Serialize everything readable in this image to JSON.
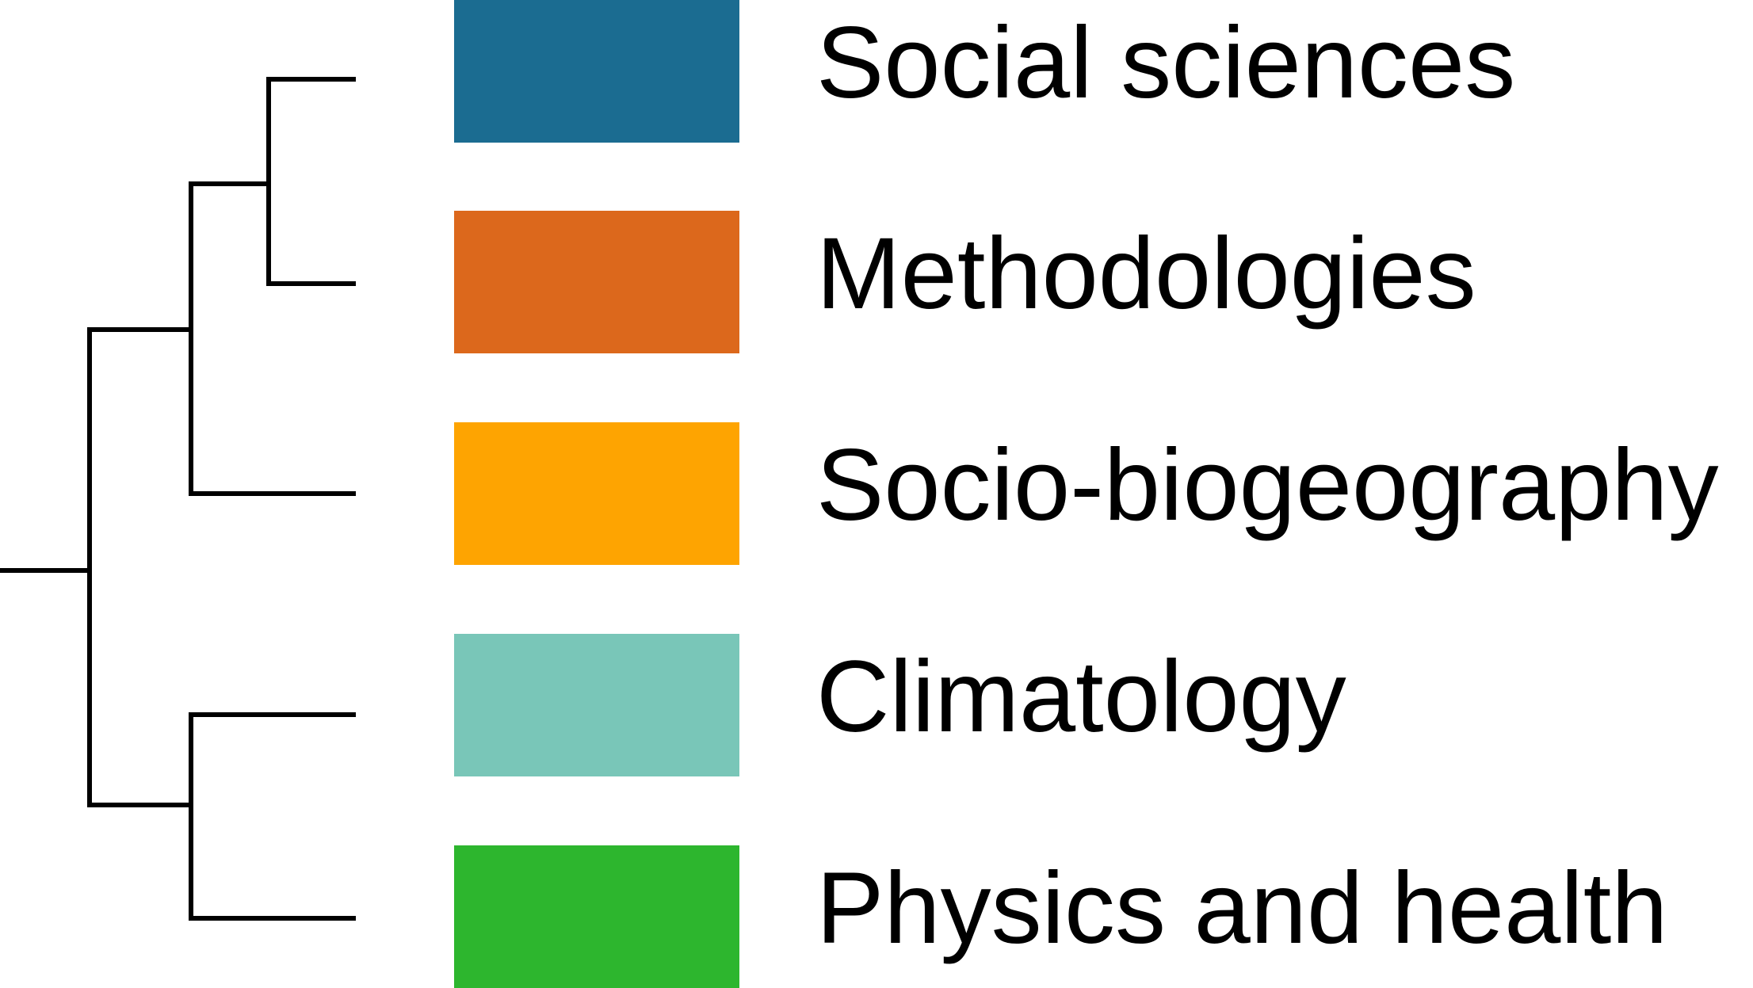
{
  "clusters": [
    {
      "label": "Social sciences",
      "color": "#1b6c91"
    },
    {
      "label": "Methodologies",
      "color": "#dc681c"
    },
    {
      "label": "Socio-biogeography",
      "color": "#fea401"
    },
    {
      "label": "Climatology",
      "color": "#79c6b8"
    },
    {
      "label": "Physics and health",
      "color": "#2db62e"
    }
  ],
  "dendrogram": {
    "line_color": "#000000",
    "merges": [
      {
        "joins": [
          "Social sciences",
          "Methodologies"
        ]
      },
      {
        "joins": [
          "Social sciences + Methodologies",
          "Socio-biogeography"
        ]
      },
      {
        "joins": [
          "Climatology",
          "Physics and health"
        ]
      },
      {
        "joins": [
          "Social sciences + Methodologies + Socio-biogeography",
          "Climatology + Physics and health"
        ]
      }
    ]
  }
}
